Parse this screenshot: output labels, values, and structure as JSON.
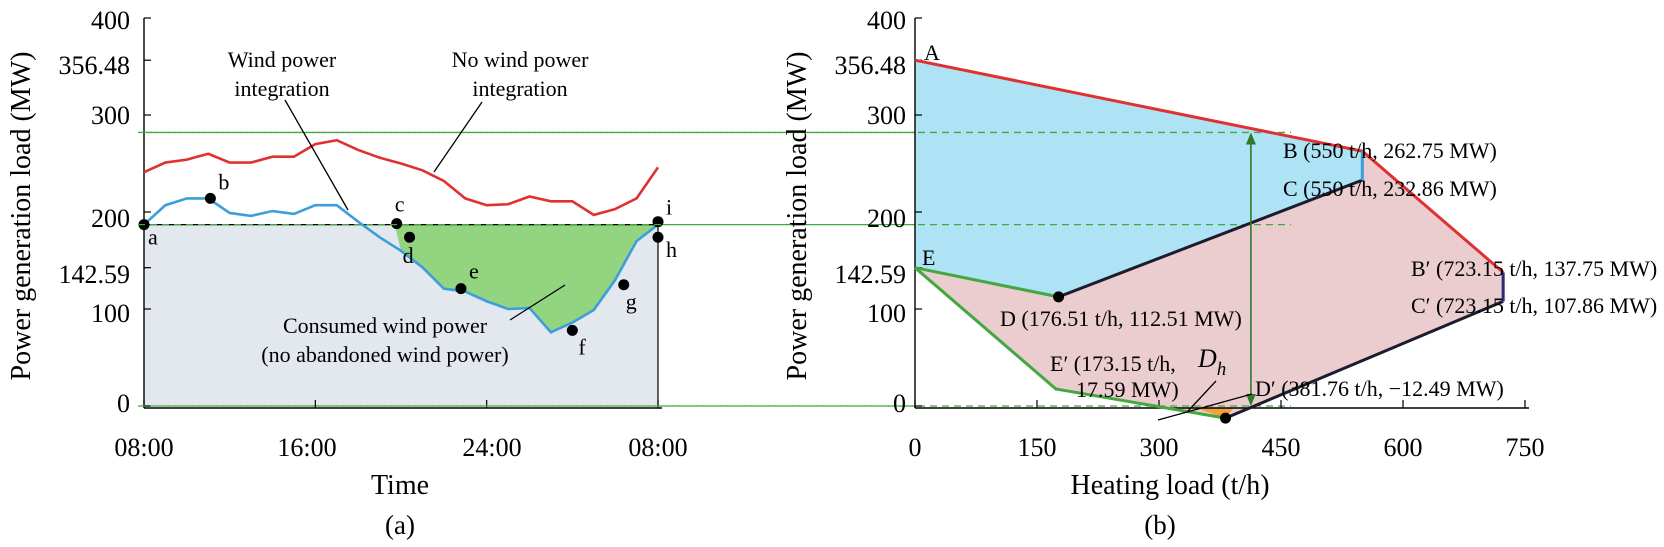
{
  "chart_data": [
    {
      "panel": "(a)",
      "type": "line",
      "xlabel": "Time",
      "ylabel": "Power generation load (MW)",
      "xticks": [
        "08:00",
        "16:00",
        "24:00",
        "08:00"
      ],
      "yticks": [
        0,
        100,
        142.59,
        200,
        300,
        356.48,
        400
      ],
      "ylim": [
        0,
        400
      ],
      "x": [
        0,
        1,
        2,
        3,
        4,
        5,
        6,
        7,
        8,
        9,
        10,
        11,
        12,
        13,
        14,
        15,
        16,
        17,
        18,
        19,
        20,
        21,
        22,
        23,
        24
      ],
      "series": [
        {
          "name": "No wind power integration",
          "color": "#e03030",
          "values": [
            241,
            251,
            254,
            260,
            251,
            251,
            257,
            257,
            270,
            274,
            264,
            256,
            250,
            243,
            232,
            214,
            207,
            208,
            216,
            211,
            211,
            197,
            203,
            214,
            246
          ]
        },
        {
          "name": "Wind power integration",
          "color": "#3c9edb",
          "values": [
            187,
            207,
            214,
            214,
            199,
            196,
            201,
            198,
            207,
            207,
            190,
            174,
            160,
            143,
            121,
            118,
            108,
            100,
            101,
            76,
            86,
            99,
            130,
            170,
            187
          ]
        }
      ],
      "reference_levels": [
        187,
        0
      ],
      "point_labels": [
        {
          "label": "a",
          "x": 0,
          "y": 187
        },
        {
          "label": "b",
          "x": 3.1,
          "y": 214
        },
        {
          "label": "c",
          "x": 11.8,
          "y": 188
        },
        {
          "label": "d",
          "x": 12.4,
          "y": 174
        },
        {
          "label": "e",
          "x": 14.8,
          "y": 121
        },
        {
          "label": "f",
          "x": 20.0,
          "y": 78
        },
        {
          "label": "g",
          "x": 22.4,
          "y": 125
        },
        {
          "label": "h",
          "x": 24,
          "y": 174
        },
        {
          "label": "i",
          "x": 24,
          "y": 190
        }
      ],
      "annotations": [
        "Wind power\nintegration",
        "No wind power\nintegration",
        "Consumed wind power\n(no abandoned wind power)"
      ],
      "colors": {
        "area_base": "#e3e8ee",
        "area_consumed": "#92d47f"
      }
    },
    {
      "panel": "(b)",
      "type": "area",
      "xlabel": "Heating load (t/h)",
      "ylabel": "Power generation load (MW)",
      "xticks": [
        0,
        150,
        300,
        450,
        600,
        750
      ],
      "yticks": [
        0,
        100,
        142.59,
        200,
        300,
        356.48,
        400
      ],
      "xlim": [
        0,
        750
      ],
      "ylim": [
        0,
        400
      ],
      "points": [
        {
          "label": "A",
          "x": 0,
          "y": 356.48
        },
        {
          "label": "B",
          "x": 550,
          "y": 262.75,
          "text": "B (550 t/h, 262.75 MW)"
        },
        {
          "label": "C",
          "x": 550,
          "y": 232.86,
          "text": "C (550 t/h, 232.86 MW)"
        },
        {
          "label": "B′",
          "x": 723.15,
          "y": 137.75,
          "text": "B′ (723.15 t/h, 137.75 MW)"
        },
        {
          "label": "C′",
          "x": 723.15,
          "y": 107.86,
          "text": "C′ (723.15 t/h, 107.86 MW)"
        },
        {
          "label": "D",
          "x": 176.51,
          "y": 112.51,
          "text": "D (176.51 t/h, 112.51 MW)"
        },
        {
          "label": "E",
          "x": 0,
          "y": 142.59
        },
        {
          "label": "E′",
          "x": 173.15,
          "y": 17.59,
          "text": "E′ (173.15 t/h,\n17.59 MW)"
        },
        {
          "label": "D′",
          "x": 381.76,
          "y": -12.49,
          "text": "D′ (381.76 t/h, −12.49 MW)"
        }
      ],
      "annotation": "D_h",
      "arrow_x": 413,
      "reference_levels": [
        282,
        187,
        0
      ],
      "colors": {
        "region_blue": "#aee2f5",
        "region_pink": "#ebcdd0",
        "upper_edge": "#e03030",
        "left_edge": "#43a840",
        "lower_edge": "#1c1c2e"
      }
    }
  ],
  "panel_a": {
    "xlabel": "Time",
    "ylabel": "Power generation load (MW)",
    "xticks": [
      "08:00",
      "16:00",
      "24:00",
      "08:00"
    ],
    "yticks": [
      "0",
      "100",
      "142.59",
      "200",
      "300",
      "356.48",
      "400"
    ],
    "ann_wind_1": "Wind power",
    "ann_wind_2": "integration",
    "ann_nowind_1": "No wind power",
    "ann_nowind_2": "integration",
    "ann_consumed_1": "Consumed wind power",
    "ann_consumed_2": "(no abandoned wind power)",
    "sublabel": "(a)"
  },
  "panel_b": {
    "xlabel": "Heating load (t/h)",
    "ylabel": "Power generation load (MW)",
    "xticks": [
      "0",
      "150",
      "300",
      "450",
      "600",
      "750"
    ],
    "yticks": [
      "0",
      "100",
      "142.59",
      "200",
      "300",
      "356.48",
      "400"
    ],
    "lab_A": "A",
    "lab_E": "E",
    "lab_B": "B (550 t/h, 262.75 MW)",
    "lab_C": "C (550 t/h, 232.86 MW)",
    "lab_Bp": "B′ (723.15 t/h, 137.75 MW)",
    "lab_Cp": "C′ (723.15 t/h, 107.86 MW)",
    "lab_D": "D (176.51 t/h, 112.51 MW)",
    "lab_Ep_1": "E′ (173.15 t/h,",
    "lab_Ep_2": "17.59 MW)",
    "lab_Dp": "D′ (381.76 t/h, −12.49 MW)",
    "lab_Dh": "D",
    "lab_Dh_sub": "h",
    "sublabel": "(b)"
  }
}
